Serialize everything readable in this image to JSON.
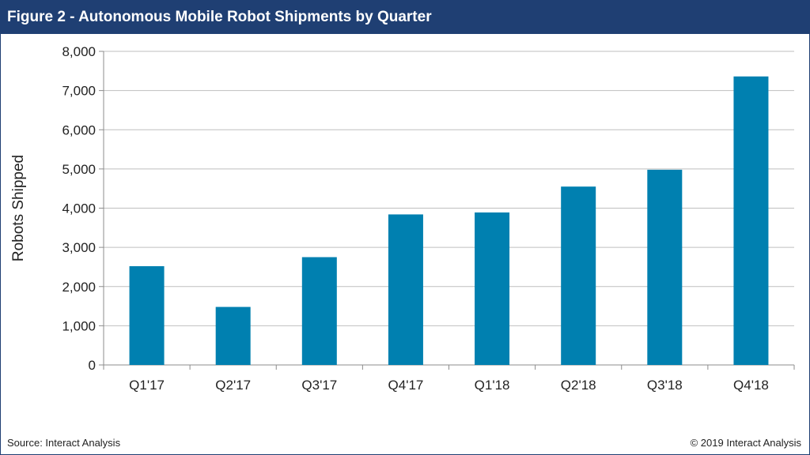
{
  "header": {
    "title": "Figure 2 - Autonomous Mobile Robot Shipments by Quarter"
  },
  "footer": {
    "source": "Source: Interact Analysis",
    "copyright": "© 2019 Interact Analysis"
  },
  "colors": {
    "bar": "#0080b0",
    "header": "#1f3f73",
    "grid": "#bfbfbf"
  },
  "chart_data": {
    "type": "bar",
    "title": "Figure 2 - Autonomous Mobile Robot Shipments by Quarter",
    "xlabel": "",
    "ylabel": "Robots Shipped",
    "categories": [
      "Q1'17",
      "Q2'17",
      "Q3'17",
      "Q4'17",
      "Q1'18",
      "Q2'18",
      "Q3'18",
      "Q4'18"
    ],
    "values": [
      2520,
      1480,
      2750,
      3840,
      3890,
      4550,
      4980,
      7360
    ],
    "ylim": [
      0,
      8000
    ],
    "yticks": [
      0,
      1000,
      2000,
      3000,
      4000,
      5000,
      6000,
      7000,
      8000
    ],
    "ytick_labels": [
      "0",
      "1,000",
      "2,000",
      "3,000",
      "4,000",
      "5,000",
      "6,000",
      "7,000",
      "8,000"
    ],
    "grid": true
  }
}
